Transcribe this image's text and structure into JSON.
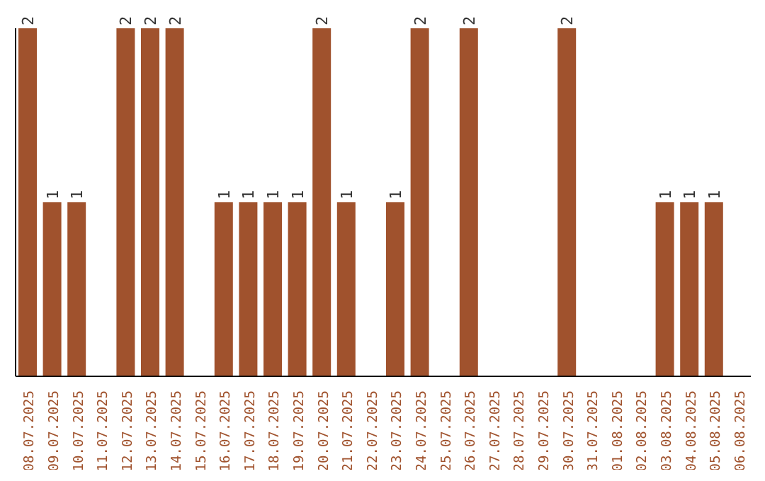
{
  "chart_data": {
    "type": "bar",
    "categories": [
      "08.07.2025",
      "09.07.2025",
      "10.07.2025",
      "11.07.2025",
      "12.07.2025",
      "13.07.2025",
      "14.07.2025",
      "15.07.2025",
      "16.07.2025",
      "17.07.2025",
      "18.07.2025",
      "19.07.2025",
      "20.07.2025",
      "21.07.2025",
      "22.07.2025",
      "23.07.2025",
      "24.07.2025",
      "25.07.2025",
      "26.07.2025",
      "27.07.2025",
      "28.07.2025",
      "29.07.2025",
      "30.07.2025",
      "31.07.2025",
      "01.08.2025",
      "02.08.2025",
      "03.08.2025",
      "04.08.2025",
      "05.08.2025",
      "06.08.2025"
    ],
    "values": [
      2,
      1,
      1,
      0,
      2,
      2,
      2,
      0,
      1,
      1,
      1,
      1,
      2,
      1,
      0,
      1,
      2,
      0,
      2,
      0,
      0,
      0,
      2,
      0,
      0,
      0,
      1,
      1,
      1,
      0
    ],
    "value_labels": [
      "2",
      "1",
      "1",
      null,
      "2",
      "2",
      "2",
      null,
      "1",
      "1",
      "1",
      "1",
      "2",
      "1",
      null,
      "1",
      "2",
      null,
      "2",
      null,
      null,
      null,
      "2",
      null,
      null,
      null,
      "1",
      "1",
      "1",
      null
    ],
    "color": "#a0522d",
    "tick_labels": "x"
  }
}
